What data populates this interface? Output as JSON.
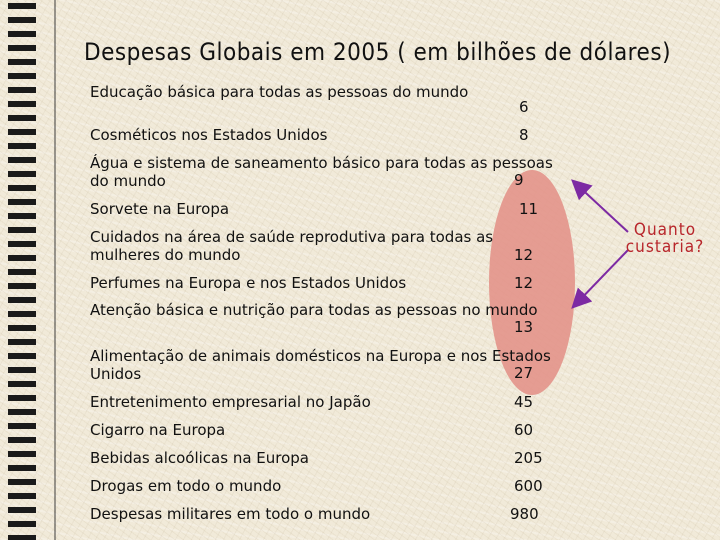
{
  "title": "Despesas Globais em 2005 ( em bilhões de dólares)",
  "items": [
    {
      "label": "Educação básica para todas as pessoas do mundo",
      "value": "6"
    },
    {
      "label": "Cosméticos nos Estados Unidos",
      "value": "8"
    },
    {
      "label": "Água e sistema de saneamento básico para todas as pessoas do mundo",
      "value": "9"
    },
    {
      "label": "Sorvete na Europa",
      "value": "11"
    },
    {
      "label": "Cuidados na área de saúde reprodutiva para todas as mulheres do mundo",
      "value": "12"
    },
    {
      "label": "Perfumes na Europa e nos Estados Unidos",
      "value": "12"
    },
    {
      "label": "Atenção básica e nutrição para todas as pessoas no mundo",
      "value": "13"
    },
    {
      "label": "Alimentação de animais domésticos na Europa e nos Estados Unidos",
      "value": "27"
    },
    {
      "label": "Entretenimento empresarial no Japão",
      "value": "45"
    },
    {
      "label": "Cigarro na Europa",
      "value": "60"
    },
    {
      "label": "Bebidas alcoólicas na Europa",
      "value": "205"
    },
    {
      "label": "Drogas em todo o mundo",
      "value": "600"
    },
    {
      "label": "Despesas militares em todo o mundo",
      "value": "980"
    }
  ],
  "annotation": {
    "line1": "Quanto",
    "line2": "custaria?",
    "color": "#b8262b"
  },
  "colors": {
    "highlight": "#e3948a",
    "arrow": "#7d2aa3"
  }
}
